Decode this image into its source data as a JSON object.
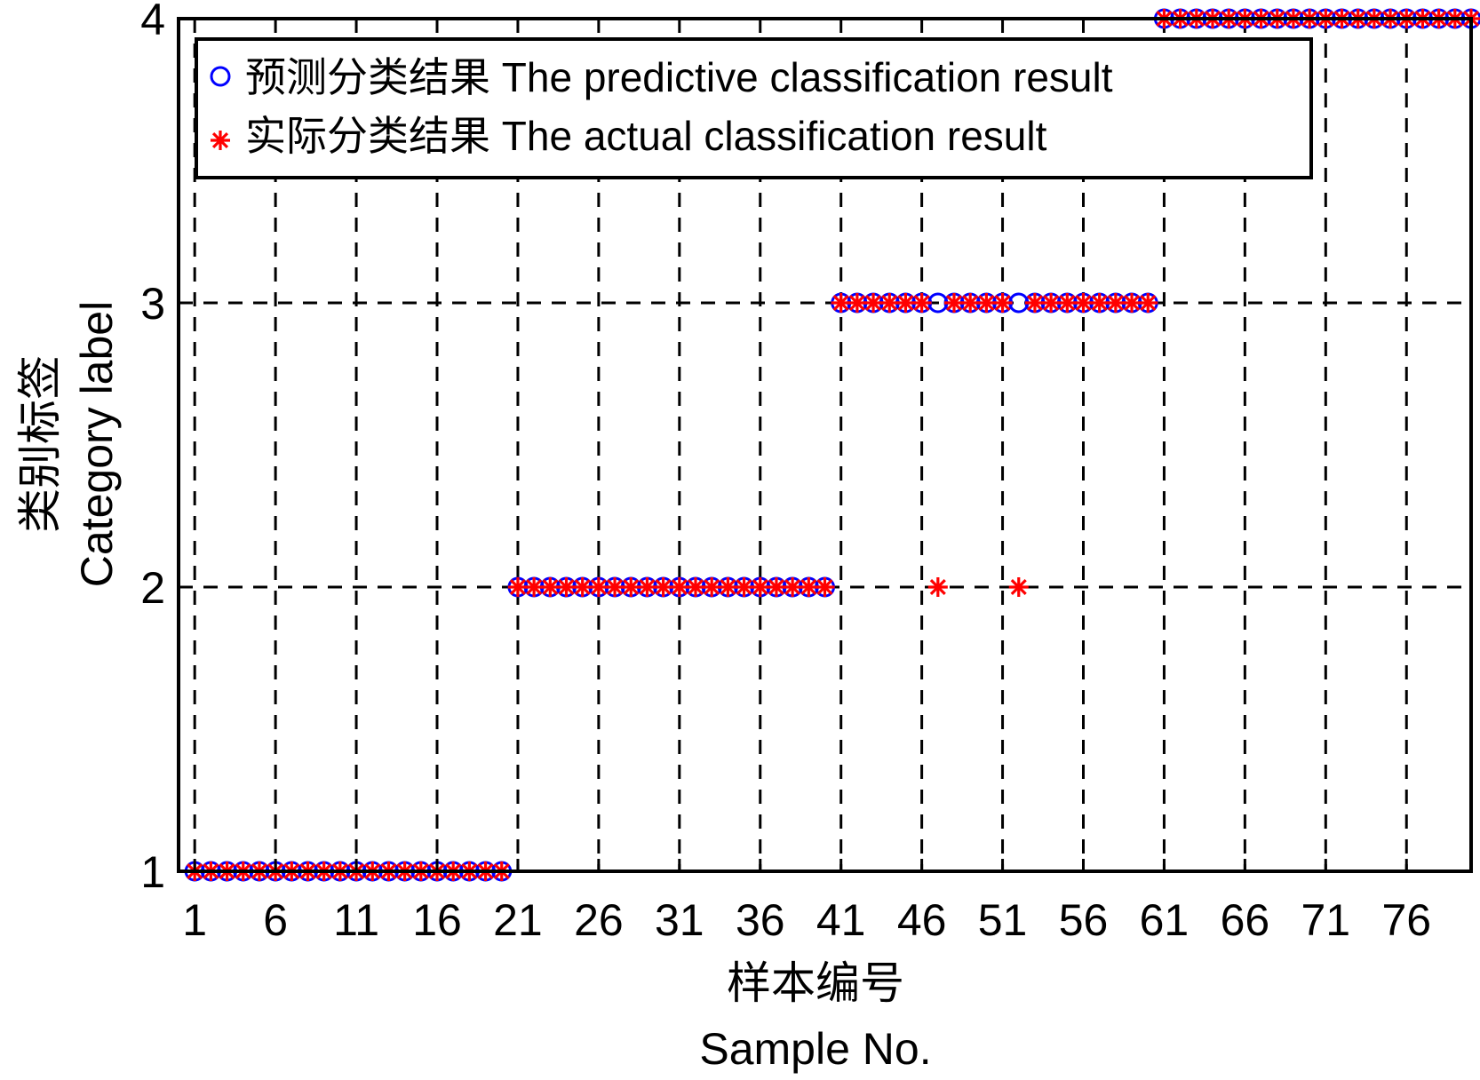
{
  "chart_data": {
    "type": "scatter",
    "xlabel_line1": "样本编号",
    "xlabel_line2": "Sample No.",
    "ylabel_line1": "类别标签",
    "ylabel_line2": "Category label",
    "xlim": [
      0,
      80
    ],
    "ylim": [
      1,
      4
    ],
    "x_ticks": [
      1,
      6,
      11,
      16,
      21,
      26,
      31,
      36,
      41,
      46,
      51,
      56,
      61,
      66,
      71,
      76
    ],
    "x_tick_labels": [
      "1",
      "6",
      "11",
      "16",
      "21",
      "26",
      "31",
      "36",
      "41",
      "46",
      "51",
      "56",
      "61",
      "66",
      "71",
      "76"
    ],
    "y_ticks": [
      1,
      2,
      3,
      4
    ],
    "y_tick_labels": [
      "1",
      "2",
      "3",
      "4"
    ],
    "grid": true,
    "grid_style": "dashed",
    "legend_position": "top-left",
    "legend": [
      {
        "label": "预测分类结果 The predictive classification result",
        "marker": "circle",
        "color": "#0000ff"
      },
      {
        "label": "实际分类结果 The actual classification result",
        "marker": "asterisk",
        "color": "#ff0000"
      }
    ],
    "series": [
      {
        "name": "预测分类结果 The predictive classification result",
        "marker": "circle",
        "color": "#0000ff",
        "x": [
          1,
          2,
          3,
          4,
          5,
          6,
          7,
          8,
          9,
          10,
          11,
          12,
          13,
          14,
          15,
          16,
          17,
          18,
          19,
          20,
          21,
          22,
          23,
          24,
          25,
          26,
          27,
          28,
          29,
          30,
          31,
          32,
          33,
          34,
          35,
          36,
          37,
          38,
          39,
          40,
          41,
          42,
          43,
          44,
          45,
          46,
          47,
          48,
          49,
          50,
          51,
          52,
          53,
          54,
          55,
          56,
          57,
          58,
          59,
          60,
          61,
          62,
          63,
          64,
          65,
          66,
          67,
          68,
          69,
          70,
          71,
          72,
          73,
          74,
          75,
          76,
          77,
          78,
          79,
          80
        ],
        "y": [
          1,
          1,
          1,
          1,
          1,
          1,
          1,
          1,
          1,
          1,
          1,
          1,
          1,
          1,
          1,
          1,
          1,
          1,
          1,
          1,
          2,
          2,
          2,
          2,
          2,
          2,
          2,
          2,
          2,
          2,
          2,
          2,
          2,
          2,
          2,
          2,
          2,
          2,
          2,
          2,
          3,
          3,
          3,
          3,
          3,
          3,
          3,
          3,
          3,
          3,
          3,
          3,
          3,
          3,
          3,
          3,
          3,
          3,
          3,
          3,
          4,
          4,
          4,
          4,
          4,
          4,
          4,
          4,
          4,
          4,
          4,
          4,
          4,
          4,
          4,
          4,
          4,
          4,
          4,
          4
        ]
      },
      {
        "name": "实际分类结果 The actual classification result",
        "marker": "asterisk",
        "color": "#ff0000",
        "x": [
          1,
          2,
          3,
          4,
          5,
          6,
          7,
          8,
          9,
          10,
          11,
          12,
          13,
          14,
          15,
          16,
          17,
          18,
          19,
          20,
          21,
          22,
          23,
          24,
          25,
          26,
          27,
          28,
          29,
          30,
          31,
          32,
          33,
          34,
          35,
          36,
          37,
          38,
          39,
          40,
          41,
          42,
          43,
          44,
          45,
          46,
          47,
          48,
          49,
          50,
          51,
          52,
          53,
          54,
          55,
          56,
          57,
          58,
          59,
          60,
          61,
          62,
          63,
          64,
          65,
          66,
          67,
          68,
          69,
          70,
          71,
          72,
          73,
          74,
          75,
          76,
          77,
          78,
          79,
          80
        ],
        "y": [
          1,
          1,
          1,
          1,
          1,
          1,
          1,
          1,
          1,
          1,
          1,
          1,
          1,
          1,
          1,
          1,
          1,
          1,
          1,
          1,
          2,
          2,
          2,
          2,
          2,
          2,
          2,
          2,
          2,
          2,
          2,
          2,
          2,
          2,
          2,
          2,
          2,
          2,
          2,
          2,
          3,
          3,
          3,
          3,
          3,
          3,
          2,
          3,
          3,
          3,
          3,
          2,
          3,
          3,
          3,
          3,
          3,
          3,
          3,
          3,
          4,
          4,
          4,
          4,
          4,
          4,
          4,
          4,
          4,
          4,
          4,
          4,
          4,
          4,
          4,
          4,
          4,
          4,
          4,
          4
        ]
      }
    ]
  }
}
